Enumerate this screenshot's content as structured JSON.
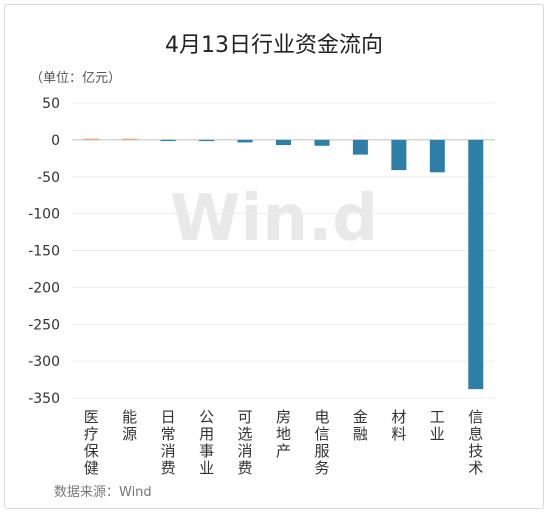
{
  "chart_data": {
    "type": "bar",
    "title": "4月13日行业资金流向",
    "unit_label": "（单位：亿元）",
    "source": "数据来源：Wind",
    "watermark": "Win.d",
    "categories": [
      "医疗保健",
      "能源",
      "日常消费",
      "公用事业",
      "可选消费",
      "房地产",
      "电信服务",
      "金融",
      "材料",
      "工业",
      "信息技术"
    ],
    "values": [
      1.2,
      1.0,
      -0.8,
      -0.7,
      -3.5,
      -7,
      -8,
      -20,
      -41,
      -44,
      -338
    ],
    "ylim": [
      -350,
      50
    ],
    "yticks": [
      50,
      0,
      -50,
      -100,
      -150,
      -200,
      -250,
      -300,
      -350
    ],
    "grid": true,
    "colors": {
      "positive": "#e8a57e",
      "negative": "#2e7fa8"
    }
  }
}
